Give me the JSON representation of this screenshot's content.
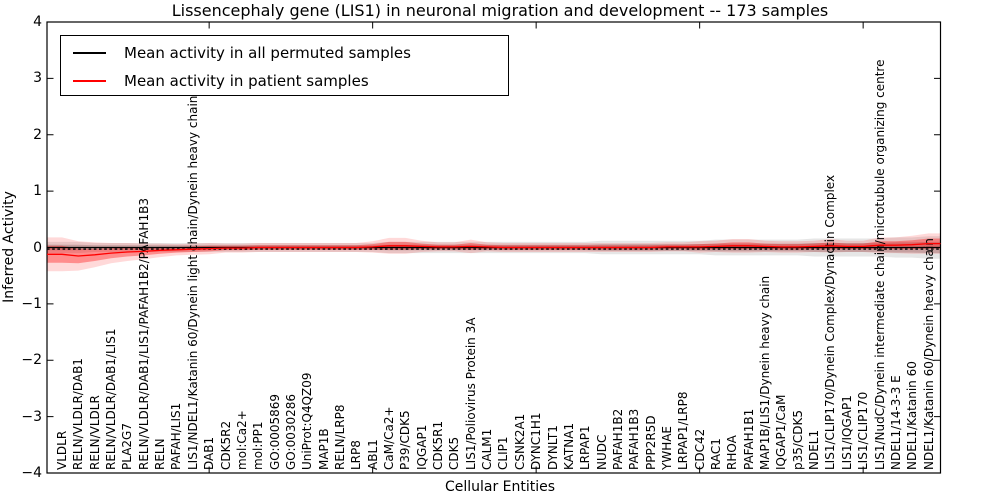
{
  "figure": {
    "title": "Lissencephaly gene (LIS1) in neuronal migration and development -- 173 samples",
    "xlabel": "Cellular Entities",
    "ylabel": "Inferred Activity"
  },
  "legend": {
    "entries": [
      {
        "label": "Mean activity in all permuted samples",
        "color": "#000000"
      },
      {
        "label": "Mean activity in patient samples",
        "color": "#ff0000"
      }
    ],
    "position": "upper left"
  },
  "axes": {
    "y_tick_labels": [
      "4",
      "3",
      "2",
      "1",
      "0",
      "−1",
      "−2",
      "−3",
      "−4"
    ],
    "y_tick_values": [
      4,
      3,
      2,
      1,
      0,
      -1,
      -2,
      -3,
      -4
    ],
    "x_major_tick_positions": [
      0,
      10,
      20,
      30,
      40,
      50
    ]
  },
  "colors": {
    "permuted_line": "#000000",
    "patient_line": "#ff0000",
    "patient_band_inner": "rgba(255,0,0,0.35)",
    "patient_band_outer": "rgba(255,0,0,0.15)",
    "permuted_band_inner": "rgba(128,128,128,0.40)",
    "permuted_band_outer": "rgba(128,128,128,0.20)",
    "frame": "#000000"
  },
  "chart_data": {
    "type": "line",
    "title": "Lissencephaly gene (LIS1) in neuronal migration and development -- 173 samples",
    "xlabel": "Cellular Entities",
    "ylabel": "Inferred Activity",
    "ylim": [
      -4,
      4
    ],
    "y_tick_interval": 1,
    "x_tick_interval": 10,
    "grid": false,
    "legend_position": "upper left",
    "categories": [
      "VLDLR",
      "RELN/VLDLR/DAB1",
      "RELN/VLDLR",
      "RELN/VLDLR/DAB1/LIS1",
      "PLA2G7",
      "RELN/VLDLR/DAB1/LIS1/PAFAH1B2/PAFAH1B3",
      "RELN",
      "PAFAH/LIS1",
      "LIS1/NDEL1/Katanin 60/Dynein light chain/Dynein heavy chain",
      "DAB1",
      "CDK5R2",
      "mol:Ca2+",
      "mol:PP1",
      "GO:0005869",
      "GO:0030286",
      "UniProt:Q4QZ09",
      "MAP1B",
      "RELN/LRP8",
      "LRP8",
      "ABL1",
      "CaM/Ca2+",
      "P39/CDK5",
      "IQGAP1",
      "CDK5R1",
      "CDK5",
      "LIS1/Poliovirus Protein 3A",
      "CALM1",
      "CLIP1",
      "CSNK2A1",
      "DYNC1H1",
      "DYNLT1",
      "KATNA1",
      "LRPAP1",
      "NUDC",
      "PAFAH1B2",
      "PAFAH1B3",
      "PPP2R5D",
      "YWHAE",
      "LRPAP1/LRP8",
      "CDC42",
      "RAC1",
      "RHOA",
      "PAFAH1B1",
      "MAP1B/LIS1/Dynein heavy chain",
      "IQGAP1/CaM",
      "p35/CDK5",
      "NDEL1",
      "LIS1/CLIP170/Dynein Complex/Dynactin Complex",
      "LIS1/IQGAP1",
      "LIS1/CLIP170",
      "LIS1/NudC/Dynein intermediate chain/microtubule organizing centre",
      "NDEL1/14-3-3 E",
      "NDEL1/Katanin 60",
      "NDEL1/Katanin 60/Dynein heavy chain"
    ],
    "series": [
      {
        "name": "Mean activity in all permuted samples",
        "color": "#000000",
        "line_style": "solid with dotted overlay",
        "values": [
          0,
          0,
          0,
          0,
          0,
          0,
          0,
          0,
          0,
          0,
          0,
          0,
          0,
          0,
          0,
          0,
          0,
          0,
          0,
          0,
          0,
          0,
          0,
          0,
          0,
          0,
          0,
          0,
          0,
          0,
          0,
          0,
          0,
          0,
          0,
          0,
          0,
          0,
          0,
          0,
          0,
          0,
          0,
          0,
          0,
          0,
          0,
          0,
          0,
          0,
          0,
          0,
          0,
          0
        ],
        "band_halfwidth": [
          0.05,
          0.05,
          0.04,
          0.04,
          0.04,
          0.04,
          0.04,
          0.04,
          0.04,
          0.04,
          0.04,
          0.04,
          0.04,
          0.04,
          0.04,
          0.04,
          0.04,
          0.04,
          0.04,
          0.04,
          0.05,
          0.05,
          0.05,
          0.05,
          0.05,
          0.05,
          0.05,
          0.05,
          0.05,
          0.05,
          0.05,
          0.05,
          0.05,
          0.06,
          0.06,
          0.06,
          0.06,
          0.06,
          0.06,
          0.06,
          0.07,
          0.07,
          0.07,
          0.07,
          0.07,
          0.07,
          0.08,
          0.08,
          0.08,
          0.08,
          0.08,
          0.09,
          0.09,
          0.1
        ]
      },
      {
        "name": "Mean activity in patient samples",
        "color": "#ff0000",
        "line_style": "solid",
        "values": [
          -0.12,
          -0.15,
          -0.13,
          -0.1,
          -0.08,
          -0.07,
          -0.05,
          -0.04,
          -0.03,
          -0.02,
          -0.01,
          -0.01,
          0,
          0,
          0,
          0,
          0,
          0,
          0,
          0.01,
          0.03,
          0.03,
          0.02,
          0.01,
          0.01,
          0.02,
          0.01,
          0,
          0,
          0,
          0,
          0,
          0,
          0,
          0,
          0,
          0,
          0.01,
          0.01,
          0.01,
          0.02,
          0.03,
          0.03,
          0.02,
          0.01,
          0.01,
          0.02,
          0.03,
          0.02,
          0.02,
          0.04,
          0.04,
          0.05,
          0.07
        ],
        "band_halfwidth": [
          0.15,
          0.13,
          0.11,
          0.09,
          0.08,
          0.07,
          0.06,
          0.05,
          0.05,
          0.05,
          0.04,
          0.04,
          0.04,
          0.04,
          0.04,
          0.04,
          0.04,
          0.04,
          0.04,
          0.05,
          0.07,
          0.07,
          0.05,
          0.04,
          0.04,
          0.06,
          0.04,
          0.04,
          0.04,
          0.04,
          0.04,
          0.04,
          0.04,
          0.04,
          0.04,
          0.04,
          0.04,
          0.04,
          0.04,
          0.05,
          0.05,
          0.06,
          0.06,
          0.05,
          0.05,
          0.05,
          0.05,
          0.06,
          0.05,
          0.05,
          0.07,
          0.07,
          0.08,
          0.09
        ]
      }
    ]
  }
}
